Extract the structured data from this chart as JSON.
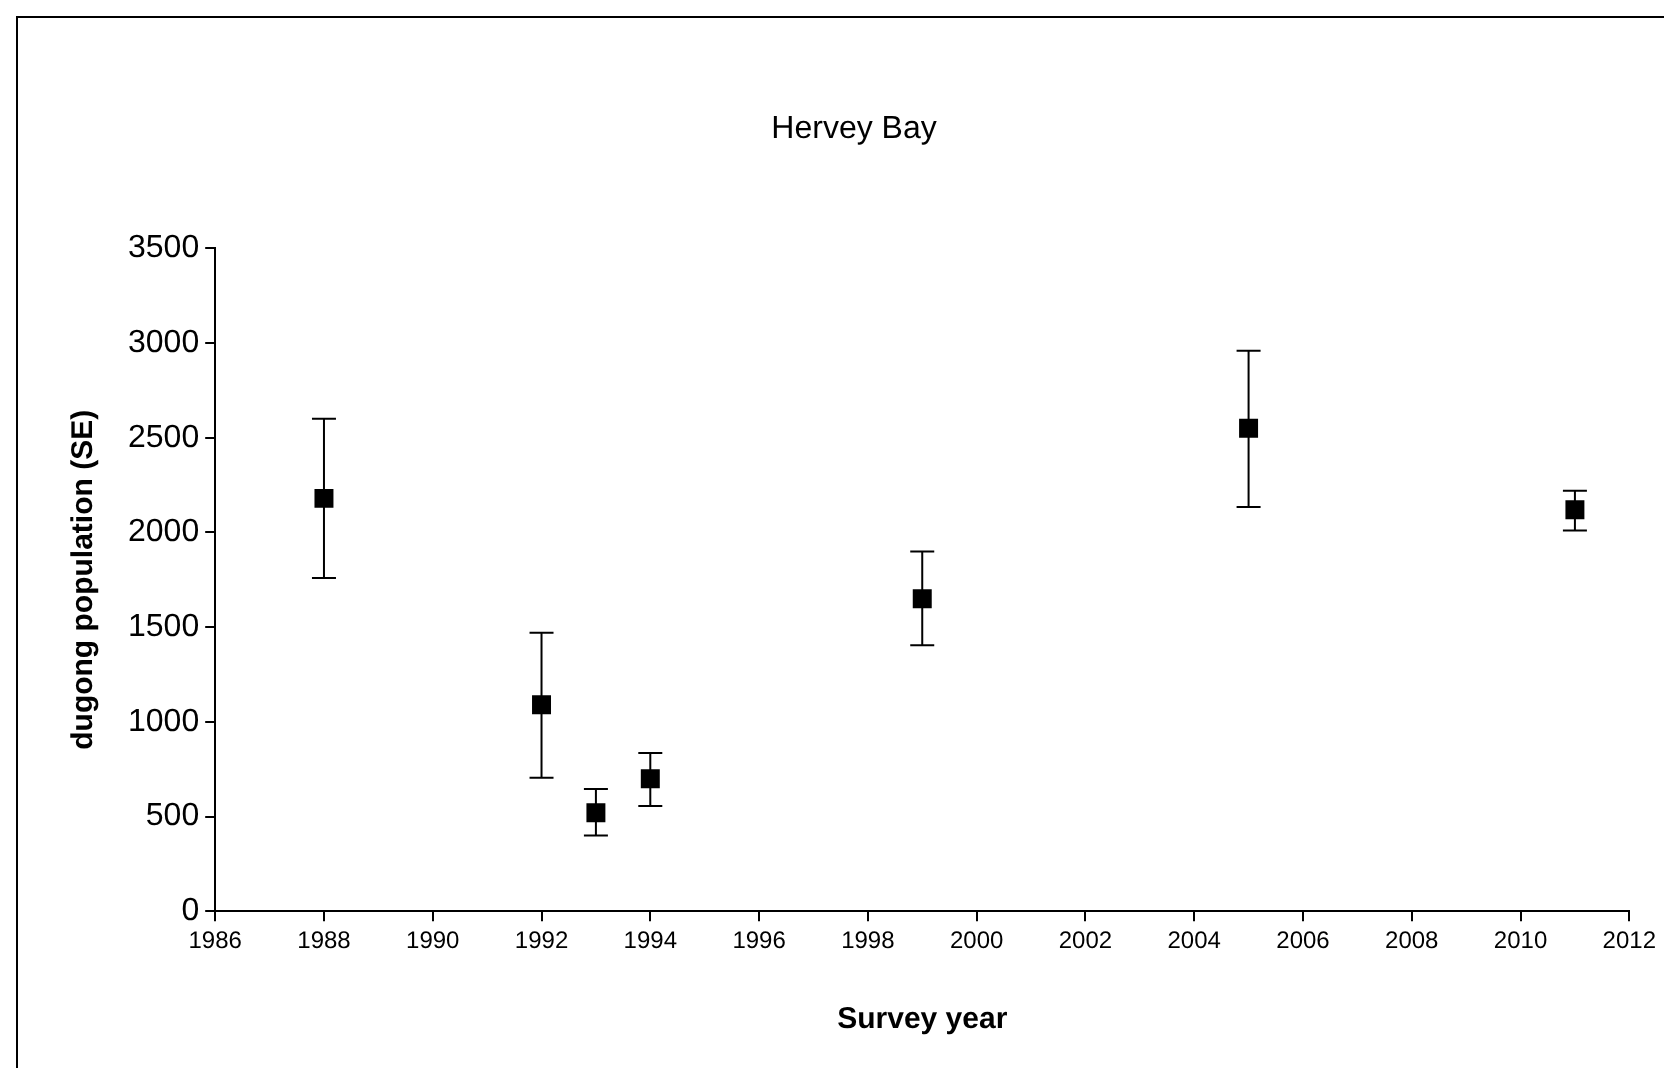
{
  "chart_data": {
    "type": "scatter",
    "title": "Hervey Bay",
    "xlabel": "Survey year",
    "ylabel": "dugong population (SE)",
    "x": [
      1988,
      1992,
      1993,
      1994,
      1999,
      2005,
      2011
    ],
    "series": [
      {
        "color": "#000000",
        "values": [
          2180,
          1090,
          520,
          700,
          1650,
          2550,
          2120
        ],
        "errors": [
          [
            1760,
            2600
          ],
          [
            705,
            1470
          ],
          [
            400,
            645
          ],
          [
            555,
            835
          ],
          [
            1405,
            1900
          ],
          [
            2135,
            2960
          ],
          [
            2010,
            2220
          ]
        ]
      }
    ],
    "xlim": [
      1986,
      2012
    ],
    "xticks": [
      1986,
      1988,
      1990,
      1992,
      1994,
      1996,
      1998,
      2000,
      2002,
      2004,
      2006,
      2008,
      2010,
      2012
    ],
    "ylim": [
      0,
      3500
    ],
    "yticks": [
      0,
      500,
      1000,
      1500,
      2000,
      2500,
      3000,
      3500
    ],
    "grid": false,
    "legend": false,
    "marker": "square"
  }
}
